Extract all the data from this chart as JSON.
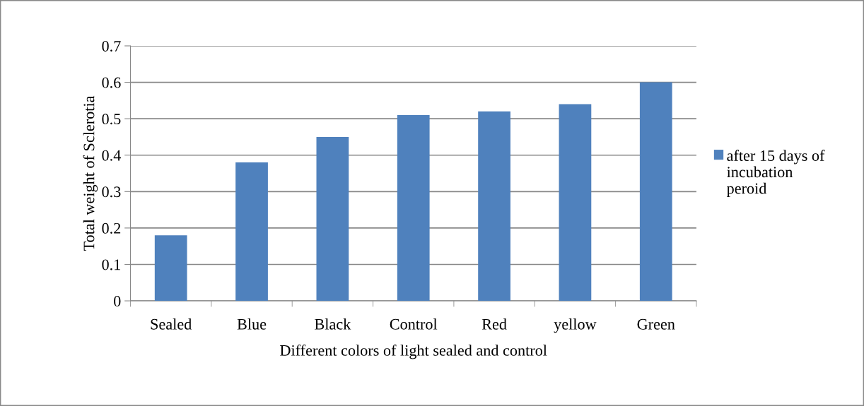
{
  "chart_data": {
    "type": "bar",
    "xlabel": "Different colors of light sealed and control",
    "ylabel": "Total weight of Sclerotia",
    "categories": [
      "Sealed",
      "Blue",
      "Black",
      "Control",
      "Red",
      "yellow",
      "Green"
    ],
    "series": [
      {
        "name": "after 15 days of incubation peroid",
        "color": "#4f81bd",
        "values": [
          0.18,
          0.38,
          0.45,
          0.51,
          0.52,
          0.54,
          0.6
        ]
      }
    ],
    "ylim": [
      0,
      0.7
    ],
    "yticks": [
      {
        "value": 0,
        "label": "0"
      },
      0.1,
      0.2,
      0.3,
      0.4,
      0.5,
      0.6,
      0.7
    ],
    "grid": "y",
    "legend": "right"
  }
}
